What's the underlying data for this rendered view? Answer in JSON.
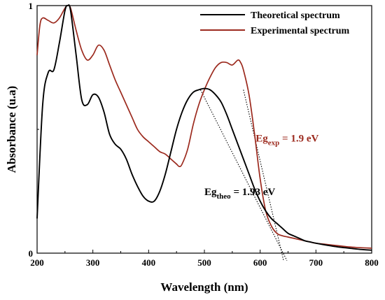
{
  "chart_data": {
    "type": "line",
    "xlabel": "Wavelength (nm)",
    "ylabel": "Absorbance (u.a)",
    "xlim": [
      200,
      800
    ],
    "ylim": [
      0,
      1
    ],
    "x_ticks": [
      200,
      300,
      400,
      500,
      600,
      700,
      800
    ],
    "y_ticks": [
      0,
      1
    ],
    "y_tick_labels": [
      "0",
      "1"
    ],
    "grid": false,
    "legend_position": "top-right",
    "series": [
      {
        "name": "Theoretical spectrum",
        "color": "#000000",
        "x": [
          200,
          210,
          220,
          230,
          240,
          250,
          255,
          260,
          270,
          280,
          290,
          300,
          310,
          320,
          330,
          340,
          350,
          360,
          370,
          380,
          390,
          400,
          410,
          420,
          430,
          440,
          450,
          460,
          470,
          480,
          490,
          500,
          510,
          520,
          530,
          540,
          550,
          560,
          570,
          580,
          590,
          600,
          610,
          620,
          630,
          640,
          650,
          660,
          670,
          680,
          690,
          700,
          720,
          740,
          760,
          780,
          800
        ],
        "y": [
          0.14,
          0.6,
          0.73,
          0.74,
          0.85,
          0.98,
          1.0,
          0.98,
          0.8,
          0.62,
          0.6,
          0.64,
          0.63,
          0.57,
          0.48,
          0.44,
          0.42,
          0.38,
          0.32,
          0.27,
          0.23,
          0.21,
          0.21,
          0.25,
          0.32,
          0.41,
          0.5,
          0.57,
          0.62,
          0.65,
          0.66,
          0.665,
          0.66,
          0.64,
          0.61,
          0.56,
          0.5,
          0.44,
          0.38,
          0.32,
          0.26,
          0.21,
          0.17,
          0.14,
          0.12,
          0.1,
          0.08,
          0.07,
          0.06,
          0.05,
          0.045,
          0.04,
          0.032,
          0.025,
          0.02,
          0.015,
          0.012
        ]
      },
      {
        "name": "Experimental spectrum",
        "color": "#9c2a1e",
        "x": [
          200,
          205,
          210,
          220,
          230,
          240,
          250,
          255,
          260,
          270,
          280,
          290,
          300,
          310,
          320,
          330,
          340,
          350,
          360,
          370,
          380,
          390,
          400,
          410,
          420,
          430,
          440,
          450,
          455,
          460,
          470,
          480,
          490,
          500,
          510,
          520,
          530,
          540,
          550,
          560,
          565,
          570,
          580,
          590,
          600,
          610,
          620,
          630,
          640,
          650,
          660,
          670,
          680,
          690,
          700,
          720,
          740,
          760,
          780,
          800
        ],
        "y": [
          0.8,
          0.92,
          0.95,
          0.94,
          0.93,
          0.95,
          0.99,
          1.0,
          0.99,
          0.9,
          0.82,
          0.78,
          0.8,
          0.84,
          0.82,
          0.76,
          0.7,
          0.65,
          0.6,
          0.55,
          0.5,
          0.47,
          0.45,
          0.43,
          0.41,
          0.4,
          0.38,
          0.36,
          0.35,
          0.36,
          0.42,
          0.52,
          0.6,
          0.66,
          0.71,
          0.75,
          0.77,
          0.77,
          0.76,
          0.78,
          0.77,
          0.74,
          0.64,
          0.48,
          0.3,
          0.17,
          0.11,
          0.08,
          0.07,
          0.065,
          0.06,
          0.055,
          0.05,
          0.045,
          0.04,
          0.035,
          0.03,
          0.025,
          0.022,
          0.02
        ]
      }
    ],
    "tangent_lines": [
      {
        "x": [
          493,
          648
        ],
        "y": [
          0.66,
          -0.03
        ]
      },
      {
        "x": [
          570,
          642
        ],
        "y": [
          0.66,
          -0.03
        ]
      }
    ],
    "annotations": [
      {
        "main": "Eg",
        "sub": "exp",
        "rest": " = 1.9 eV",
        "color": "#9c2a1e",
        "x": 592,
        "y": 0.45
      },
      {
        "main": "Eg",
        "sub": "theo",
        "rest": " = 1.93 eV",
        "color": "#000000",
        "x": 500,
        "y": 0.235
      }
    ]
  }
}
